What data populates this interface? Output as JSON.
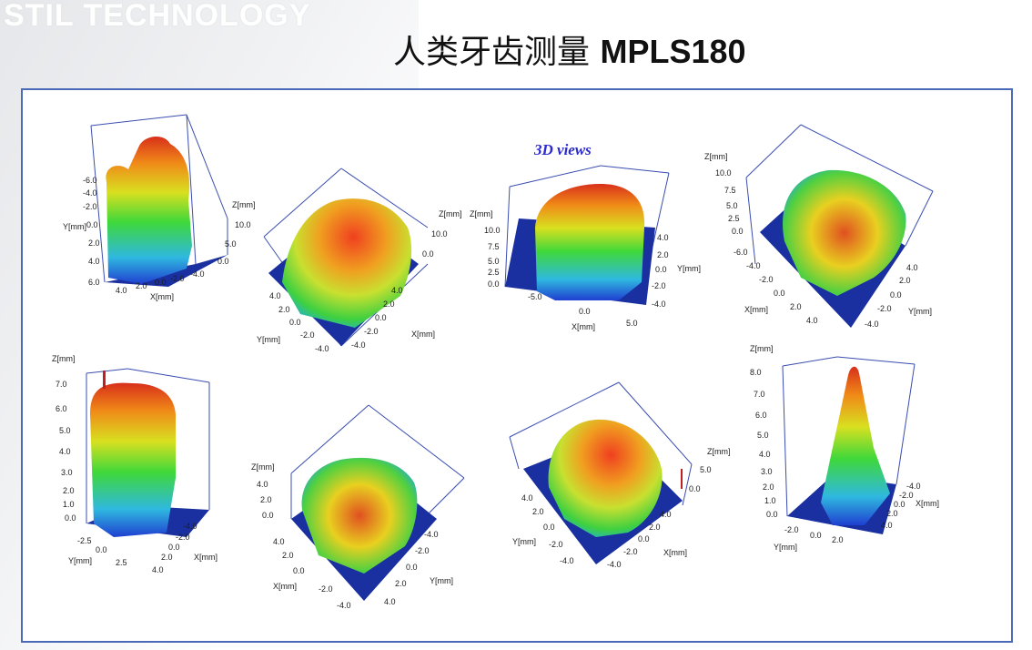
{
  "header": {
    "watermark": "STIL TECHNOLOGY",
    "title_cn": "人类牙齿测量",
    "title_model": "MPLS180"
  },
  "views_label": "3D views",
  "colors": {
    "frame": "#4a6ab8",
    "base": "#1a2fa0",
    "views_label": "#2a2ad0"
  },
  "plots": [
    {
      "z_label": "Z[mm]",
      "z_ticks": [
        "10.0",
        "5.0",
        "0.0"
      ],
      "y_label": "Y[mm]",
      "y_ticks": [
        "-6.0",
        "-4.0",
        "-2.0",
        "0.0",
        "2.0",
        "4.0",
        "6.0"
      ],
      "x_label": "X[mm]",
      "x_ticks": [
        "4.0",
        "2.0",
        "0.0",
        "-2.0",
        "-4.0"
      ]
    },
    {
      "z_label": "Z[mm]",
      "z_ticks": [
        "10.0",
        "0.0"
      ],
      "y_label": "Y[mm]",
      "y_ticks": [
        "4.0",
        "2.0",
        "0.0",
        "-2.0",
        "-4.0"
      ],
      "x_label": "X[mm]",
      "x_ticks": [
        "4.0",
        "2.0",
        "0.0",
        "-2.0",
        "-4.0"
      ]
    },
    {
      "z_label": "Z[mm]",
      "z_ticks": [
        "10.0",
        "7.5",
        "5.0",
        "2.5",
        "0.0"
      ],
      "y_label": "Y[mm]",
      "y_ticks": [
        "4.0",
        "2.0",
        "0.0",
        "-2.0",
        "-4.0"
      ],
      "x_label": "X[mm]",
      "x_ticks": [
        "-5.0",
        "0.0",
        "5.0"
      ]
    },
    {
      "z_label": "Z[mm]",
      "z_ticks": [
        "10.0",
        "7.5",
        "5.0",
        "2.5",
        "0.0"
      ],
      "x_label": "X[mm]",
      "x_ticks": [
        "-6.0",
        "-4.0",
        "-2.0",
        "0.0",
        "2.0",
        "4.0"
      ],
      "y_label": "Y[mm]",
      "y_ticks": [
        "4.0",
        "2.0",
        "0.0",
        "-2.0",
        "-4.0"
      ]
    },
    {
      "z_label": "Z[mm]",
      "z_ticks": [
        "7.0",
        "6.0",
        "5.0",
        "4.0",
        "3.0",
        "2.0",
        "1.0",
        "0.0"
      ],
      "y_label": "Y[mm]",
      "y_ticks": [
        "-2.5",
        "0.0",
        "2.5"
      ],
      "x_label": "X[mm]",
      "x_ticks": [
        "-4.0",
        "-2.0",
        "0.0",
        "2.0",
        "4.0"
      ]
    },
    {
      "z_label": "Z[mm]",
      "z_ticks": [
        "4.0",
        "2.0",
        "0.0"
      ],
      "x_label": "X[mm]",
      "x_ticks": [
        "4.0",
        "2.0",
        "0.0",
        "-2.0",
        "-4.0"
      ],
      "y_label": "Y[mm]",
      "y_ticks": [
        "-4.0",
        "-2.0",
        "0.0",
        "2.0",
        "4.0"
      ]
    },
    {
      "z_label": "Z[mm]",
      "z_ticks": [
        "5.0",
        "0.0"
      ],
      "y_label": "Y[mm]",
      "y_ticks": [
        "4.0",
        "2.0",
        "0.0",
        "-2.0",
        "-4.0"
      ],
      "x_label": "X[mm]",
      "x_ticks": [
        "-4.0",
        "-2.0",
        "0.0",
        "2.0",
        "4.0"
      ]
    },
    {
      "z_label": "Z[mm]",
      "z_ticks": [
        "8.0",
        "7.0",
        "6.0",
        "5.0",
        "4.0",
        "3.0",
        "2.0",
        "1.0",
        "0.0"
      ],
      "x_label": "X[mm]",
      "x_ticks": [
        "-4.0",
        "-2.0",
        "0.0",
        "2.0",
        "4.0"
      ],
      "y_label": "Y[mm]",
      "y_ticks": [
        "-2.0",
        "0.0",
        "2.0"
      ]
    }
  ]
}
